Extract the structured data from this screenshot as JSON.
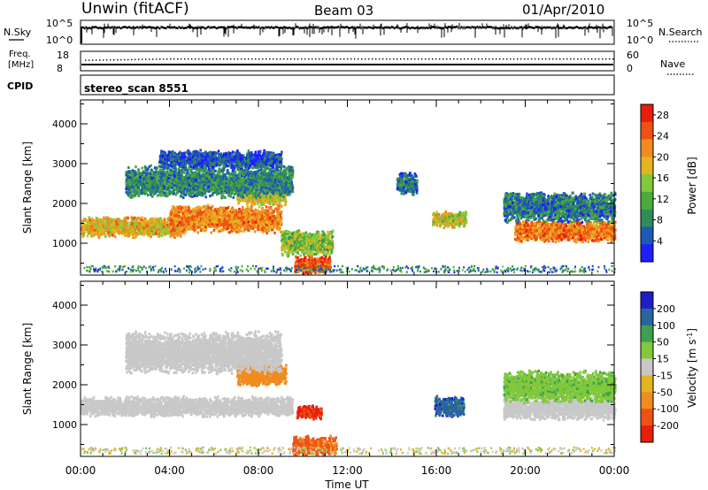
{
  "header": {
    "site": "Unwin (fitACF)",
    "beam": "Beam 03",
    "date": "01/Apr/2010"
  },
  "strip_nsky": {
    "label": "N.Sky",
    "ticks_left": [
      "10^5",
      "10^0"
    ],
    "ticks_right": [
      "10^5",
      "10^0"
    ],
    "right_label": "N.Search",
    "right_label_style": "dotted"
  },
  "strip_freq": {
    "label_line1": "Freq.",
    "label_line2": "[MHz]",
    "ticks_left": [
      "18",
      "8"
    ],
    "ticks_right": [
      "60",
      "0"
    ],
    "right_label": "Nave",
    "right_label_style": "dotted"
  },
  "strip_cpid": {
    "label": "CPID",
    "text": "stereo_scan 8551"
  },
  "colors": {
    "power": [
      "#1e1eff",
      "#1e5ab4",
      "#2f8c5a",
      "#4cab3c",
      "#82c83c",
      "#e6b41e",
      "#f08c1e",
      "#f05014",
      "#e61e0a"
    ],
    "velocity": [
      "#e61e0a",
      "#f05014",
      "#f08c1e",
      "#e6b41e",
      "#c8c8c8",
      "#82c83c",
      "#3ca050",
      "#2a64a0",
      "#1e1ec8"
    ]
  },
  "chart_data": [
    {
      "type": "heatmap",
      "quantity": "Power",
      "ylabel": "Slant Range [km]",
      "yticks": [
        "1000",
        "2000",
        "3000",
        "4000"
      ],
      "ylim": [
        200,
        4600
      ],
      "xlim": [
        "00:00",
        "24:00"
      ],
      "colorbar_label": "Power [dB]",
      "colorbar_ticks": [
        "4",
        "8",
        "12",
        "16",
        "20",
        "24",
        "28"
      ],
      "colorbar_range": [
        0,
        30
      ],
      "features": [
        {
          "t_start": 0.0,
          "t_end": 4.5,
          "range_center": 1400,
          "range_halfwidth": 230,
          "power": 19
        },
        {
          "t_start": 4.0,
          "t_end": 9.0,
          "range_center": 1600,
          "range_halfwidth": 300,
          "power": 22
        },
        {
          "t_start": 7.0,
          "t_end": 9.2,
          "range_center": 2150,
          "range_halfwidth": 170,
          "power": 18
        },
        {
          "t_start": 2.0,
          "t_end": 9.5,
          "range_center": 2550,
          "range_halfwidth": 350,
          "power": 8
        },
        {
          "t_start": 3.5,
          "t_end": 9.0,
          "range_center": 3100,
          "range_halfwidth": 200,
          "power": 5
        },
        {
          "t_start": 9.0,
          "t_end": 11.3,
          "range_center": 1000,
          "range_halfwidth": 280,
          "power": 14
        },
        {
          "t_start": 9.6,
          "t_end": 11.2,
          "range_center": 450,
          "range_halfwidth": 200,
          "power": 25
        },
        {
          "t_start": 14.2,
          "t_end": 15.1,
          "range_center": 2500,
          "range_halfwidth": 250,
          "power": 6
        },
        {
          "t_start": 15.8,
          "t_end": 17.3,
          "range_center": 1600,
          "range_halfwidth": 180,
          "power": 17
        },
        {
          "t_start": 19.5,
          "t_end": 24.0,
          "range_center": 1300,
          "range_halfwidth": 240,
          "power": 23
        },
        {
          "t_start": 19.0,
          "t_end": 24.0,
          "range_center": 1900,
          "range_halfwidth": 330,
          "power": 7
        }
      ]
    },
    {
      "type": "heatmap",
      "quantity": "Velocity",
      "ylabel": "Slant Range [km]",
      "yticks": [
        "1000",
        "2000",
        "3000",
        "4000"
      ],
      "ylim": [
        200,
        4600
      ],
      "xlabel": "Time UT",
      "xticks": [
        "00:00",
        "04:00",
        "08:00",
        "12:00",
        "16:00",
        "20:00",
        "00:00"
      ],
      "xlim": [
        "00:00",
        "24:00"
      ],
      "colorbar_label": "Velocity [m s^-1]",
      "colorbar_ticks": [
        "-200",
        "-100",
        "-50",
        "-15",
        "15",
        "50",
        "100",
        "200"
      ],
      "features": [
        {
          "t_start": 0.0,
          "t_end": 9.5,
          "range_center": 1450,
          "range_halfwidth": 220,
          "velocity": 0
        },
        {
          "t_start": 7.0,
          "t_end": 9.2,
          "range_center": 2250,
          "range_halfwidth": 250,
          "velocity": -75
        },
        {
          "t_start": 9.7,
          "t_end": 10.8,
          "range_center": 1300,
          "range_halfwidth": 150,
          "velocity": -220
        },
        {
          "t_start": 9.5,
          "t_end": 11.5,
          "range_center": 450,
          "range_halfwidth": 220,
          "velocity": -120
        },
        {
          "t_start": 15.9,
          "t_end": 17.2,
          "range_center": 1450,
          "range_halfwidth": 220,
          "velocity": 150
        },
        {
          "t_start": 19.0,
          "t_end": 24.0,
          "range_center": 1400,
          "range_halfwidth": 250,
          "velocity": 0
        },
        {
          "t_start": 19.0,
          "t_end": 24.0,
          "range_center": 1950,
          "range_halfwidth": 350,
          "velocity": 40
        },
        {
          "t_start": 2.0,
          "t_end": 9.0,
          "range_center": 2800,
          "range_halfwidth": 450,
          "velocity": 0
        }
      ]
    }
  ]
}
